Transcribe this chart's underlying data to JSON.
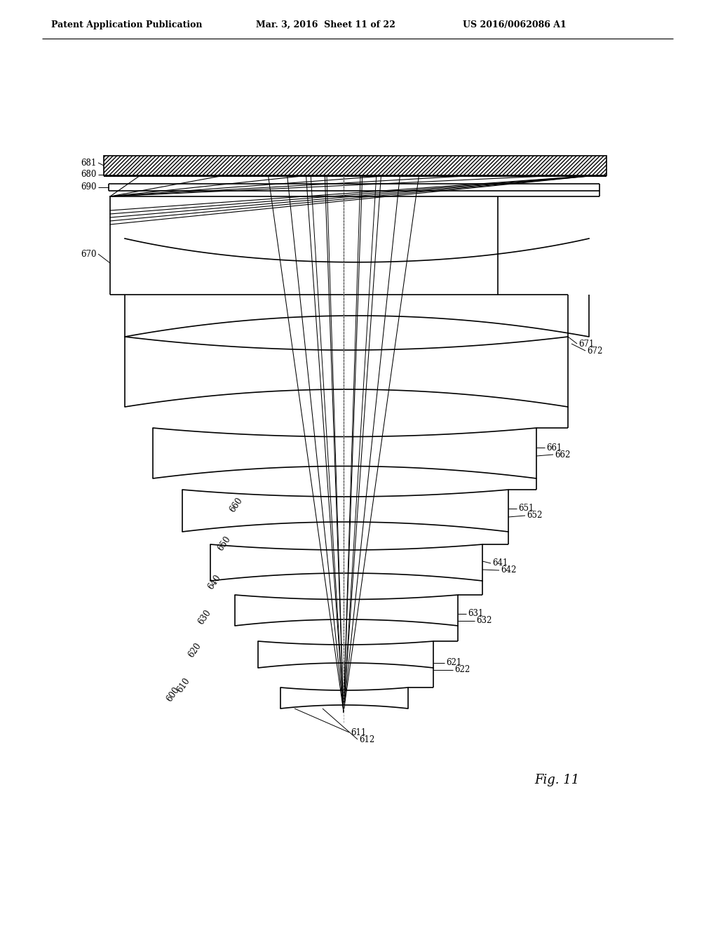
{
  "header_left": "Patent Application Publication",
  "header_mid": "Mar. 3, 2016  Sheet 11 of 22",
  "header_right": "US 2016/0062086 A1",
  "fig_label": "Fig. 11",
  "bg_color": "#ffffff",
  "line_color": "#000000"
}
